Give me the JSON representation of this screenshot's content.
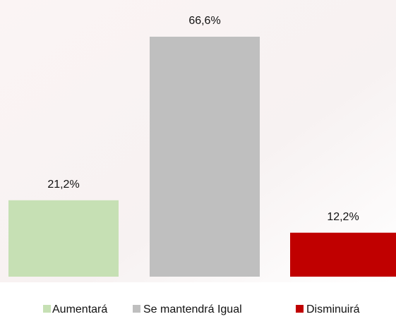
{
  "chart_data": {
    "type": "bar",
    "series": [
      {
        "name": "Aumentará",
        "color": "#c6e0b4",
        "values": [
          21.2
        ],
        "value_labels": [
          "21,2%"
        ]
      },
      {
        "name": "Se mantendrá Igual",
        "color": "#bfbfbf",
        "values": [
          66.6
        ],
        "value_labels": [
          "66,6%"
        ]
      },
      {
        "name": "Disminuirá",
        "color": "#c00000",
        "values": [
          12.2
        ],
        "value_labels": [
          "12,2%"
        ]
      }
    ],
    "legend": "bottom"
  }
}
